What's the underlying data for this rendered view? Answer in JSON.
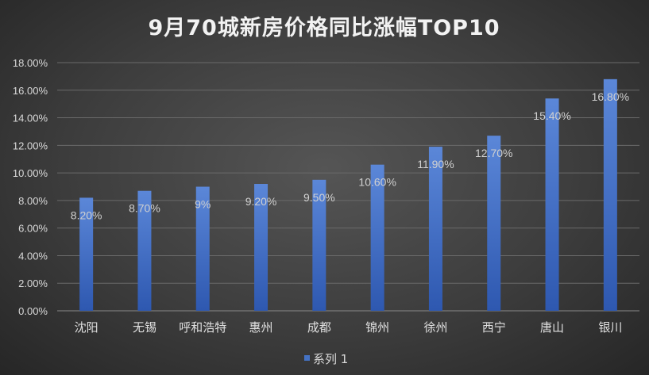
{
  "colors": {
    "bar_top": "#5b87d8",
    "bar_bottom": "#2e58b0",
    "legend_marker": "#4472c4"
  },
  "chart_data": {
    "type": "bar",
    "title": "9月70城新房价格同比涨幅TOP10",
    "categories": [
      "沈阳",
      "无锡",
      "呼和浩特",
      "惠州",
      "成都",
      "锦州",
      "徐州",
      "西宁",
      "唐山",
      "银川"
    ],
    "series": [
      {
        "name": "系列 1",
        "values": [
          8.2,
          8.7,
          9.0,
          9.2,
          9.5,
          10.6,
          11.9,
          12.7,
          15.4,
          16.8
        ],
        "labels": [
          "8.20%",
          "8.70%",
          "9%",
          "9.20%",
          "9.50%",
          "10.60%",
          "11.90%",
          "12.70%",
          "15.40%",
          "16.80%"
        ]
      }
    ],
    "y_ticks": [
      "0.00%",
      "2.00%",
      "4.00%",
      "6.00%",
      "8.00%",
      "10.00%",
      "12.00%",
      "14.00%",
      "16.00%",
      "18.00%"
    ],
    "ylim": [
      0,
      18
    ],
    "grid": true,
    "legend_position": "bottom"
  }
}
